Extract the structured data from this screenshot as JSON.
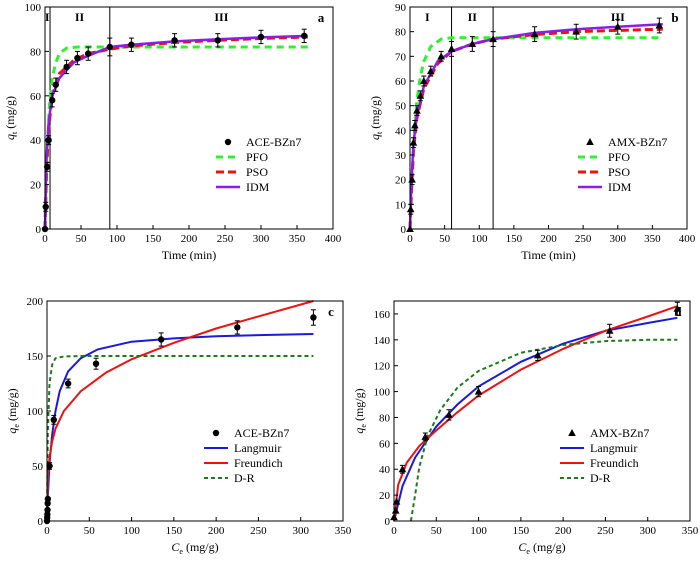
{
  "chart_data": [
    {
      "id": "a",
      "type": "line",
      "panel_label": "a",
      "xlabel": "Time (min)",
      "ylabel_main": "q",
      "ylabel_sub": "t",
      "ylabel_unit": " (mg/g)",
      "xlim": [
        0,
        400
      ],
      "ylim": [
        0,
        100
      ],
      "xticks": [
        0,
        50,
        100,
        150,
        200,
        250,
        300,
        350,
        400
      ],
      "yticks": [
        0,
        20,
        40,
        60,
        80,
        100
      ],
      "regions": {
        "lines": [
          7,
          90
        ],
        "labels": [
          {
            "x": 3,
            "text": "I"
          },
          {
            "x": 48,
            "text": "II"
          },
          {
            "x": 245,
            "text": "III"
          }
        ]
      },
      "legend": {
        "position": "bottom-right",
        "entries": [
          "ACE-BZn7",
          "PFO",
          "PSO",
          "IDM"
        ]
      },
      "markers": {
        "name": "ACE-BZn7",
        "shape": "circle",
        "points": [
          [
            0,
            0
          ],
          [
            1,
            10
          ],
          [
            3,
            28
          ],
          [
            5,
            40
          ],
          [
            10,
            58
          ],
          [
            15,
            65
          ],
          [
            30,
            73
          ],
          [
            45,
            77
          ],
          [
            60,
            79
          ],
          [
            90,
            82
          ],
          [
            120,
            83
          ],
          [
            180,
            85
          ],
          [
            240,
            85
          ],
          [
            300,
            86.5
          ],
          [
            360,
            87
          ]
        ],
        "errors": [
          0,
          2,
          2,
          2,
          3,
          3,
          3,
          3,
          3,
          4,
          3,
          3,
          3,
          3,
          3
        ]
      },
      "series": [
        {
          "name": "PFO",
          "color": "#33ee33",
          "dash": "7,5",
          "width": 3,
          "points": [
            [
              0,
              0
            ],
            [
              3,
              35
            ],
            [
              6,
              55
            ],
            [
              10,
              68
            ],
            [
              15,
              75
            ],
            [
              20,
              79
            ],
            [
              30,
              81.5
            ],
            [
              45,
              82
            ],
            [
              60,
              82
            ],
            [
              100,
              82
            ],
            [
              200,
              82
            ],
            [
              365,
              82
            ]
          ]
        },
        {
          "name": "PSO",
          "color": "#ee1111",
          "dash": "8,4",
          "width": 3,
          "points": [
            [
              0,
              0
            ],
            [
              2,
              25
            ],
            [
              5,
              45
            ],
            [
              10,
              60
            ],
            [
              20,
              70
            ],
            [
              40,
              76
            ],
            [
              60,
              79
            ],
            [
              90,
              81
            ],
            [
              120,
              82.5
            ],
            [
              180,
              84
            ],
            [
              240,
              85
            ],
            [
              300,
              85.8
            ],
            [
              365,
              86.5
            ]
          ]
        },
        {
          "name": "IDM",
          "color": "#8a1ee8",
          "dash": "",
          "width": 2.5,
          "points": [
            [
              0,
              0
            ],
            [
              2,
              30
            ],
            [
              5,
              48
            ],
            [
              10,
              60
            ],
            [
              20,
              68
            ],
            [
              40,
              75
            ],
            [
              60,
              78
            ],
            [
              90,
              82
            ],
            [
              120,
              83
            ],
            [
              180,
              84.5
            ],
            [
              240,
              85.5
            ],
            [
              300,
              86.3
            ],
            [
              365,
              87
            ]
          ]
        }
      ]
    },
    {
      "id": "b",
      "type": "line",
      "panel_label": "b",
      "xlabel": "Time (min)",
      "ylabel_main": "q",
      "ylabel_sub": "t",
      "ylabel_unit": " (mg/g)",
      "xlim": [
        0,
        400
      ],
      "ylim": [
        0,
        90
      ],
      "xticks": [
        0,
        50,
        100,
        150,
        200,
        250,
        300,
        350,
        400
      ],
      "yticks": [
        0,
        10,
        20,
        30,
        40,
        50,
        60,
        70,
        80,
        90
      ],
      "regions": {
        "lines": [
          60,
          120
        ],
        "labels": [
          {
            "x": 25,
            "text": "I"
          },
          {
            "x": 90,
            "text": "II"
          },
          {
            "x": 300,
            "text": "III"
          }
        ]
      },
      "legend": {
        "position": "bottom-right",
        "entries": [
          "AMX-BZn7",
          "PFO",
          "PSO",
          "IDM"
        ]
      },
      "markers": {
        "name": "AMX-BZn7",
        "shape": "triangle",
        "points": [
          [
            0,
            0
          ],
          [
            1,
            8
          ],
          [
            3,
            20
          ],
          [
            5,
            35
          ],
          [
            7,
            42
          ],
          [
            10,
            48
          ],
          [
            15,
            54
          ],
          [
            20,
            60
          ],
          [
            30,
            64
          ],
          [
            45,
            70
          ],
          [
            60,
            73
          ],
          [
            90,
            75
          ],
          [
            120,
            77
          ],
          [
            180,
            79
          ],
          [
            240,
            80
          ],
          [
            300,
            82
          ],
          [
            360,
            82.5
          ]
        ],
        "errors": [
          0,
          2,
          2,
          2,
          2,
          2,
          2,
          2,
          2,
          2,
          3,
          3,
          3,
          3,
          3,
          3,
          3
        ]
      },
      "series": [
        {
          "name": "PFO",
          "color": "#33ee33",
          "dash": "7,5",
          "width": 3,
          "points": [
            [
              0,
              0
            ],
            [
              3,
              22
            ],
            [
              6,
              38
            ],
            [
              10,
              52
            ],
            [
              15,
              62
            ],
            [
              20,
              68
            ],
            [
              30,
              74
            ],
            [
              45,
              77
            ],
            [
              60,
              77.5
            ],
            [
              100,
              77.5
            ],
            [
              200,
              77.5
            ],
            [
              365,
              77.5
            ]
          ]
        },
        {
          "name": "PSO",
          "color": "#ee1111",
          "dash": "8,4",
          "width": 3,
          "points": [
            [
              0,
              0
            ],
            [
              2,
              15
            ],
            [
              5,
              32
            ],
            [
              10,
              45
            ],
            [
              20,
              57
            ],
            [
              40,
              67
            ],
            [
              60,
              72
            ],
            [
              90,
              75
            ],
            [
              120,
              77
            ],
            [
              180,
              78.8
            ],
            [
              240,
              80
            ],
            [
              300,
              80.5
            ],
            [
              365,
              81
            ]
          ]
        },
        {
          "name": "IDM",
          "color": "#8a1ee8",
          "dash": "",
          "width": 2.5,
          "points": [
            [
              0,
              0
            ],
            [
              2,
              18
            ],
            [
              5,
              35
            ],
            [
              10,
              46
            ],
            [
              20,
              58
            ],
            [
              40,
              68
            ],
            [
              60,
              72
            ],
            [
              90,
              75
            ],
            [
              120,
              77
            ],
            [
              180,
              79.5
            ],
            [
              240,
              81
            ],
            [
              300,
              82
            ],
            [
              365,
              83
            ]
          ]
        }
      ]
    },
    {
      "id": "c",
      "type": "line",
      "panel_label": "c",
      "xlabel_main": "C",
      "xlabel_sub": "e",
      "xlabel_unit": " (mg/g)",
      "ylabel_main": "q",
      "ylabel_sub": "e",
      "ylabel_unit": " (mg/g)",
      "xlim": [
        0,
        350
      ],
      "ylim": [
        0,
        200
      ],
      "xticks": [
        0,
        50,
        100,
        150,
        200,
        250,
        300,
        350
      ],
      "yticks": [
        0,
        50,
        100,
        150,
        200
      ],
      "legend": {
        "position": "bottom-right",
        "entries": [
          "ACE-BZn7",
          "Langmuir",
          "Freundich",
          "D-R"
        ]
      },
      "markers": {
        "name": "ACE-BZn7",
        "shape": "circle",
        "points": [
          [
            0,
            0
          ],
          [
            0.2,
            3
          ],
          [
            0.4,
            6
          ],
          [
            0.6,
            10
          ],
          [
            0.8,
            16
          ],
          [
            1,
            20
          ],
          [
            3,
            50
          ],
          [
            8,
            92
          ],
          [
            25,
            125
          ],
          [
            58,
            143
          ],
          [
            135,
            165
          ],
          [
            225,
            176
          ],
          [
            315,
            185
          ]
        ],
        "errors": [
          0,
          0,
          0,
          0,
          0,
          0,
          3,
          4,
          4,
          5,
          6,
          6,
          7
        ]
      },
      "series": [
        {
          "name": "Langmuir",
          "color": "#1a1ad8",
          "dash": "",
          "width": 2,
          "points": [
            [
              0,
              0
            ],
            [
              1,
              22
            ],
            [
              3,
              52
            ],
            [
              6,
              78
            ],
            [
              10,
              100
            ],
            [
              15,
              118
            ],
            [
              25,
              136
            ],
            [
              40,
              148
            ],
            [
              60,
              156
            ],
            [
              100,
              163
            ],
            [
              150,
              166
            ],
            [
              200,
              168
            ],
            [
              250,
              169
            ],
            [
              315,
              170
            ]
          ]
        },
        {
          "name": "Freundich",
          "color": "#ee1111",
          "dash": "",
          "width": 2,
          "points": [
            [
              0,
              0
            ],
            [
              1,
              38
            ],
            [
              3,
              58
            ],
            [
              6,
              72
            ],
            [
              10,
              84
            ],
            [
              20,
              100
            ],
            [
              40,
              118
            ],
            [
              70,
              135
            ],
            [
              100,
              147
            ],
            [
              150,
              162
            ],
            [
              200,
              175
            ],
            [
              250,
              186
            ],
            [
              315,
              200
            ]
          ]
        },
        {
          "name": "D-R",
          "color": "#1e7a1e",
          "dash": "4,3",
          "width": 2,
          "points": [
            [
              0,
              0
            ],
            [
              1,
              80
            ],
            [
              3,
              125
            ],
            [
              6,
              142
            ],
            [
              10,
              148
            ],
            [
              20,
              149.5
            ],
            [
              40,
              150
            ],
            [
              100,
              150
            ],
            [
              200,
              150
            ],
            [
              315,
              150
            ]
          ]
        }
      ]
    },
    {
      "id": "d",
      "type": "line",
      "panel_label": "d",
      "xlabel_main": "C",
      "xlabel_sub": "e",
      "xlabel_unit": " (mg/g)",
      "ylabel_main": "q",
      "ylabel_sub": "e",
      "ylabel_unit": " (mg/g)",
      "xlim": [
        0,
        350
      ],
      "ylim": [
        0,
        170
      ],
      "xticks": [
        0,
        50,
        100,
        150,
        200,
        250,
        300,
        350
      ],
      "yticks": [
        0,
        20,
        40,
        60,
        80,
        100,
        120,
        140,
        160
      ],
      "legend": {
        "position": "bottom-right",
        "entries": [
          "AMX-BZn7",
          "Langmuir",
          "Freundich",
          "D-R"
        ]
      },
      "markers": {
        "name": "AMX-BZn7",
        "shape": "triangle",
        "points": [
          [
            0,
            3
          ],
          [
            2,
            8
          ],
          [
            3,
            15
          ],
          [
            10,
            40
          ],
          [
            37,
            65
          ],
          [
            65,
            82
          ],
          [
            100,
            100
          ],
          [
            170,
            128
          ],
          [
            255,
            147
          ],
          [
            335,
            164
          ]
        ],
        "errors": [
          0,
          0,
          0,
          3,
          3,
          4,
          4,
          4,
          5,
          5
        ]
      },
      "series": [
        {
          "name": "Langmuir",
          "color": "#1a1ad8",
          "dash": "",
          "width": 2,
          "points": [
            [
              0,
              0
            ],
            [
              10,
              27
            ],
            [
              25,
              49
            ],
            [
              50,
              73
            ],
            [
              75,
              90
            ],
            [
              100,
              104
            ],
            [
              150,
              123
            ],
            [
              200,
              137
            ],
            [
              250,
              147
            ],
            [
              300,
              153
            ],
            [
              335,
              157
            ]
          ]
        },
        {
          "name": "Freundich",
          "color": "#ee1111",
          "dash": "",
          "width": 2,
          "points": [
            [
              0,
              0
            ],
            [
              5,
              28
            ],
            [
              15,
              45
            ],
            [
              30,
              58
            ],
            [
              50,
              70
            ],
            [
              75,
              84
            ],
            [
              100,
              97
            ],
            [
              150,
              117
            ],
            [
              200,
              133
            ],
            [
              250,
              147
            ],
            [
              300,
              158
            ],
            [
              335,
              166
            ]
          ]
        },
        {
          "name": "D-R",
          "color": "#1e7a1e",
          "dash": "4,3",
          "width": 2,
          "points": [
            [
              20,
              0
            ],
            [
              25,
              20
            ],
            [
              30,
              42
            ],
            [
              40,
              66
            ],
            [
              55,
              86
            ],
            [
              75,
              103
            ],
            [
              100,
              116
            ],
            [
              150,
              130
            ],
            [
              200,
              136
            ],
            [
              250,
              139
            ],
            [
              300,
              140
            ],
            [
              335,
              140
            ]
          ]
        }
      ]
    }
  ]
}
